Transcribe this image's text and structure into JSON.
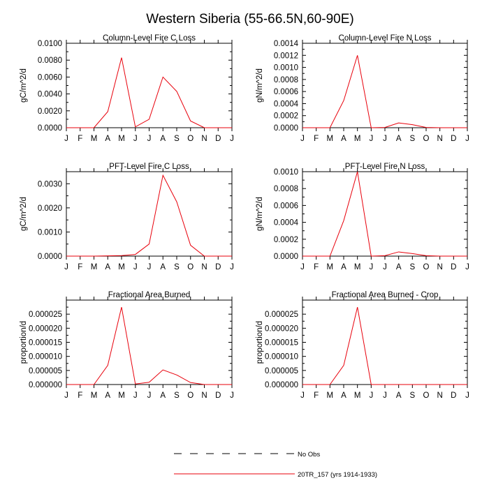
{
  "figure": {
    "title": "Western Siberia (55-66.5N,60-90E)",
    "months": [
      "J",
      "F",
      "M",
      "A",
      "M",
      "J",
      "J",
      "A",
      "S",
      "O",
      "N",
      "D",
      "J"
    ]
  },
  "legend": {
    "items": [
      {
        "label": "No Obs",
        "style": "dashed",
        "color": "#000000"
      },
      {
        "label": "20TR_157 (yrs 1914-1933)",
        "style": "solid",
        "color": "#e8000b"
      }
    ]
  },
  "chart_data": [
    {
      "type": "line",
      "title": "Column-Level Fire C Loss",
      "ylabel": "gC/m^2/d",
      "ylim": [
        0,
        0.01
      ],
      "yticks": [
        "0.0000",
        "0.0020",
        "0.0040",
        "0.0060",
        "0.0080",
        "0.0100"
      ],
      "series": [
        {
          "name": "20TR_157 (yrs 1914-1933)",
          "color": "#e8000b",
          "values": [
            0,
            0,
            0,
            0.0019,
            0.0083,
            0.0001,
            0.001,
            0.006,
            0.0043,
            0.0008,
            0,
            0,
            0
          ]
        }
      ]
    },
    {
      "type": "line",
      "title": "Column-Level Fire N Loss",
      "ylabel": "gN/m^2/d",
      "ylim": [
        0,
        0.0014
      ],
      "yticks": [
        "0.0000",
        "0.0002",
        "0.0004",
        "0.0006",
        "0.0008",
        "0.0010",
        "0.0012",
        "0.0014"
      ],
      "series": [
        {
          "name": "20TR_157 (yrs 1914-1933)",
          "color": "#e8000b",
          "values": [
            0,
            0,
            0,
            0.00045,
            0.0012,
            0,
            5e-06,
            8e-05,
            5e-05,
            5e-06,
            0,
            0,
            0
          ]
        }
      ]
    },
    {
      "type": "line",
      "title": "PFT-Level Fire C Loss",
      "ylabel": "gC/m^2/d",
      "ylim": [
        0,
        0.0035
      ],
      "yticks": [
        "0.0000",
        "0.0010",
        "0.0020",
        "0.0030"
      ],
      "ytick_values": [
        0,
        0.001,
        0.002,
        0.003
      ],
      "series": [
        {
          "name": "20TR_157 (yrs 1914-1933)",
          "color": "#e8000b",
          "values": [
            0,
            0,
            0,
            1e-05,
            2e-05,
            7e-05,
            0.0005,
            0.00335,
            0.00225,
            0.00045,
            0,
            0,
            0
          ]
        }
      ]
    },
    {
      "type": "line",
      "title": "PFT-Level Fire N Loss",
      "ylabel": "gN/m^2/d",
      "ylim": [
        0,
        0.001
      ],
      "yticks": [
        "0.0000",
        "0.0002",
        "0.0004",
        "0.0006",
        "0.0008",
        "0.0010"
      ],
      "series": [
        {
          "name": "20TR_157 (yrs 1914-1933)",
          "color": "#e8000b",
          "values": [
            0,
            0,
            0,
            0.00042,
            0.001,
            0,
            5e-06,
            5e-05,
            3e-05,
            5e-06,
            0,
            0,
            0
          ]
        }
      ]
    },
    {
      "type": "line",
      "title": "Fractional Area Burned",
      "ylabel": "proportion/d",
      "ylim": [
        0,
        3e-05
      ],
      "yticks": [
        "0.000000",
        "0.000005",
        "0.000010",
        "0.000015",
        "0.000020",
        "0.000025"
      ],
      "ytick_values": [
        0,
        5e-06,
        1e-05,
        1.5e-05,
        2e-05,
        2.5e-05
      ],
      "series": [
        {
          "name": "20TR_157 (yrs 1914-1933)",
          "color": "#e8000b",
          "values": [
            0,
            0,
            0,
            6.8e-06,
            2.75e-05,
            2e-07,
            8e-07,
            5.2e-06,
            3.4e-06,
            7e-07,
            0,
            0,
            0
          ]
        }
      ]
    },
    {
      "type": "line",
      "title": "Fractional Area Burned - Crop",
      "ylabel": "proportion/d",
      "ylim": [
        0,
        3e-05
      ],
      "yticks": [
        "0.000000",
        "0.000005",
        "0.000010",
        "0.000015",
        "0.000020",
        "0.000025"
      ],
      "ytick_values": [
        0,
        5e-06,
        1e-05,
        1.5e-05,
        2e-05,
        2.5e-05
      ],
      "series": [
        {
          "name": "20TR_157 (yrs 1914-1933)",
          "color": "#e8000b",
          "values": [
            0,
            0,
            0,
            6.8e-06,
            2.75e-05,
            0,
            0,
            0,
            0,
            0,
            0,
            0,
            0
          ]
        }
      ]
    }
  ]
}
